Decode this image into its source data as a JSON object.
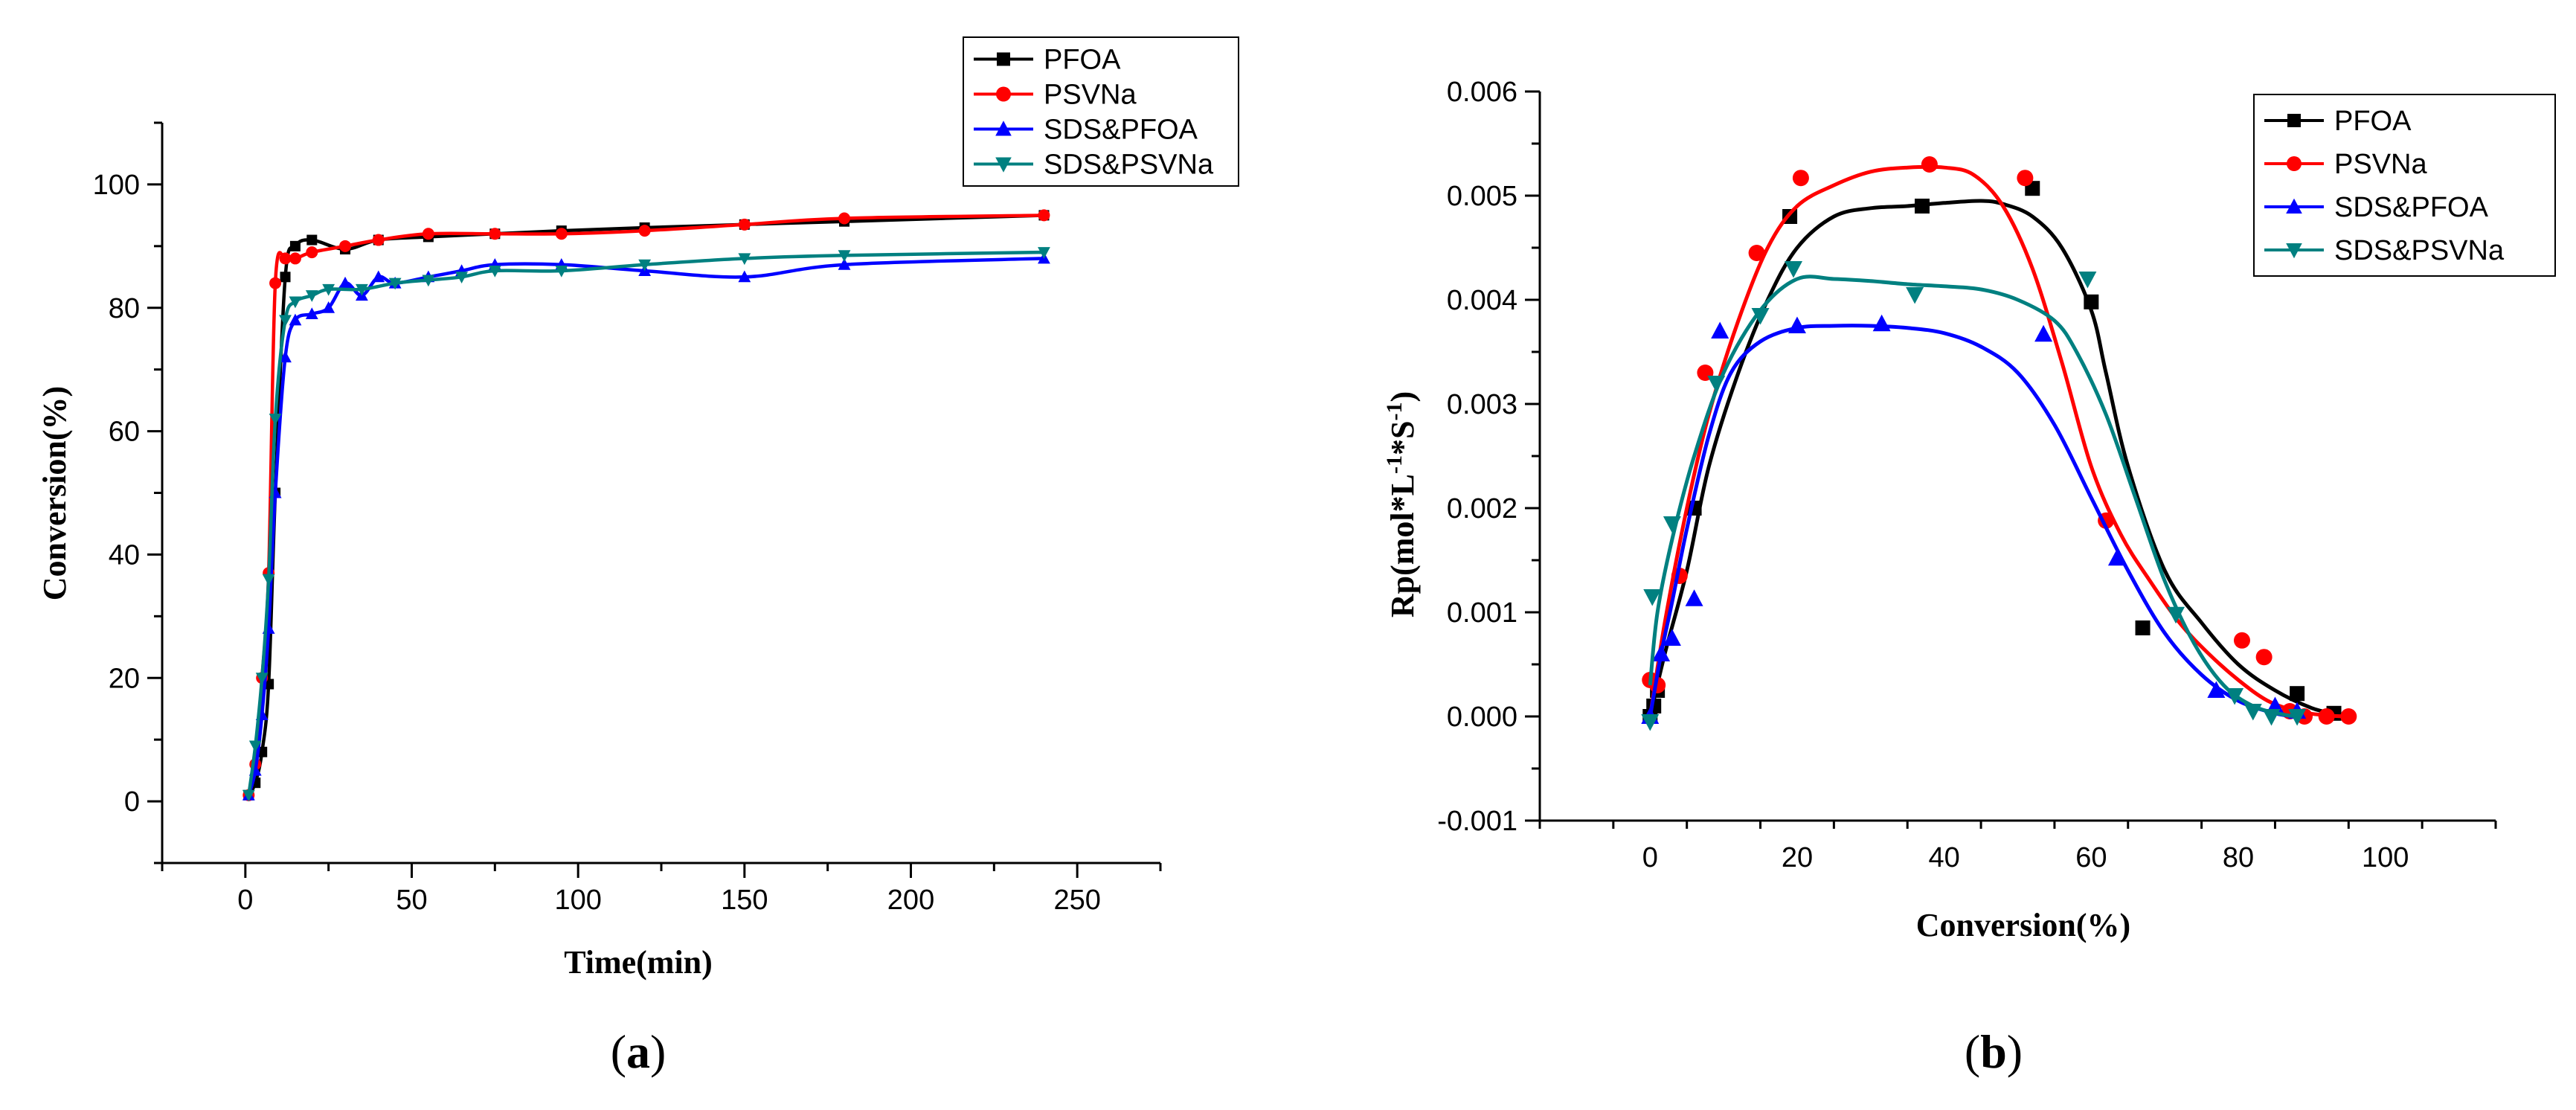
{
  "figure": {
    "captions": [
      "(a)",
      "(b)"
    ],
    "caption_letters": [
      "a",
      "b"
    ]
  },
  "chart_data": [
    {
      "type": "line",
      "title": "",
      "xlabel": "Time(min)",
      "ylabel": "Conversion(%)",
      "xlim": [
        -25,
        275
      ],
      "ylim": [
        -10,
        110
      ],
      "xticks": [
        0,
        50,
        100,
        150,
        200,
        250
      ],
      "yticks": [
        0,
        20,
        40,
        60,
        80,
        100
      ],
      "legend_position": "top-right",
      "series": [
        {
          "name": "PFOA",
          "color": "#000000",
          "marker": "square",
          "x": [
            1,
            3,
            5,
            7,
            9,
            12,
            15,
            20,
            30,
            40,
            55,
            75,
            95,
            120,
            150,
            180,
            240
          ],
          "y": [
            1,
            3,
            8,
            19,
            50,
            85,
            90,
            91,
            89.5,
            91,
            91.5,
            92,
            92.5,
            93,
            93.5,
            94,
            95
          ]
        },
        {
          "name": "PSVNa",
          "color": "#ff0000",
          "marker": "circle",
          "x": [
            1,
            3,
            5,
            7,
            9,
            12,
            15,
            20,
            30,
            40,
            55,
            75,
            95,
            120,
            150,
            180,
            240
          ],
          "y": [
            1,
            6,
            20,
            37,
            84,
            88,
            88,
            89,
            90,
            91,
            92,
            92,
            92,
            92.5,
            93.5,
            94.5,
            95
          ]
        },
        {
          "name": "SDS&PFOA",
          "color": "#0000ff",
          "marker": "triangle-up",
          "x": [
            1,
            3,
            5,
            7,
            9,
            12,
            15,
            20,
            25,
            30,
            35,
            40,
            45,
            55,
            65,
            75,
            95,
            120,
            150,
            180,
            240
          ],
          "y": [
            1,
            5,
            14,
            28,
            50,
            72,
            78,
            79,
            80,
            84,
            82,
            85,
            84,
            85,
            86,
            87,
            87,
            86,
            85,
            87,
            88
          ]
        },
        {
          "name": "SDS&PSVNa",
          "color": "#008080",
          "marker": "triangle-down",
          "x": [
            1,
            3,
            5,
            7,
            9,
            12,
            15,
            20,
            25,
            35,
            45,
            55,
            65,
            75,
            95,
            120,
            150,
            180,
            240
          ],
          "y": [
            1,
            9,
            20,
            36,
            62,
            78,
            81,
            82,
            83,
            83,
            84,
            84.5,
            85,
            86,
            86,
            87,
            88,
            88.5,
            89
          ]
        }
      ]
    },
    {
      "type": "line",
      "title": "",
      "xlabel": "Conversion(%)",
      "ylabel_main": "Rp(mol*L",
      "ylabel_sup1": "-1",
      "ylabel_mid": "*S",
      "ylabel_sup2": "-1",
      "ylabel_end": ")",
      "xlim": [
        -15,
        115
      ],
      "ylim": [
        -0.001,
        0.006
      ],
      "xticks": [
        0,
        20,
        40,
        60,
        80,
        100
      ],
      "yticks": [
        -0.001,
        0.0,
        0.001,
        0.002,
        0.003,
        0.004,
        0.005,
        0.006
      ],
      "ytick_labels": [
        "-0.001",
        "0.000",
        "0.001",
        "0.002",
        "0.003",
        "0.004",
        "0.005",
        "0.006"
      ],
      "legend_position": "top-right",
      "series": [
        {
          "name": "PFOA",
          "color": "#000000",
          "marker": "square",
          "points_x": [
            0,
            0.5,
            1,
            6,
            19,
            37,
            52,
            60,
            67,
            88,
            93
          ],
          "points_y": [
            0.0,
            0.0001,
            0.00025,
            0.002,
            0.0048,
            0.0049,
            0.00507,
            0.00398,
            0.00085,
            0.00022,
            3e-05
          ],
          "curve_x": [
            0,
            2,
            5,
            8,
            12,
            16,
            20,
            25,
            30,
            35,
            40,
            45,
            48,
            52,
            56,
            60,
            62,
            65,
            70,
            75,
            80,
            85,
            90,
            93
          ],
          "curve_y": [
            0.0,
            0.0006,
            0.0014,
            0.0024,
            0.0033,
            0.004,
            0.0045,
            0.0048,
            0.00488,
            0.0049,
            0.00493,
            0.00495,
            0.00492,
            0.0048,
            0.0045,
            0.0039,
            0.0033,
            0.0024,
            0.0014,
            0.0009,
            0.0005,
            0.00025,
            8e-05,
            3e-05
          ]
        },
        {
          "name": "PSVNa",
          "color": "#ff0000",
          "marker": "circle",
          "points_x": [
            0,
            1,
            4,
            7.5,
            14.5,
            20.5,
            38,
            51,
            62,
            80.5,
            83.5,
            87,
            89,
            92,
            95
          ],
          "points_y": [
            0.00035,
            0.0003,
            0.00135,
            0.0033,
            0.00445,
            0.00517,
            0.0053,
            0.00517,
            0.00188,
            0.00073,
            0.00057,
            5e-05,
            0.0,
            0.0,
            0.0
          ],
          "curve_x": [
            0,
            2,
            5,
            8,
            12,
            16,
            20,
            25,
            30,
            35,
            40,
            44,
            48,
            52,
            56,
            60,
            64,
            68,
            72,
            76,
            80,
            84,
            88,
            92,
            95
          ],
          "curve_y": [
            0.0,
            0.0009,
            0.002,
            0.0029,
            0.0038,
            0.0045,
            0.0049,
            0.0051,
            0.00523,
            0.00527,
            0.00527,
            0.0052,
            0.0049,
            0.0043,
            0.0034,
            0.0024,
            0.00175,
            0.0013,
            0.0009,
            0.0006,
            0.00035,
            0.00015,
            5e-05,
            1e-05,
            0.0
          ]
        },
        {
          "name": "SDS&PFOA",
          "color": "#0000ff",
          "marker": "triangle-up",
          "points_x": [
            0,
            1.5,
            3,
            6,
            9.5,
            20,
            31.5,
            53.5,
            63.5,
            77,
            85,
            88
          ],
          "points_y": [
            0.0,
            0.0006,
            0.00075,
            0.00113,
            0.0037,
            0.00375,
            0.00377,
            0.00367,
            0.00152,
            0.00025,
            0.0001,
            5e-05
          ],
          "curve_x": [
            0,
            1.5,
            3,
            5,
            8,
            11,
            15,
            20,
            25,
            30,
            35,
            40,
            45,
            50,
            55,
            60,
            65,
            70,
            75,
            80,
            85,
            88
          ],
          "curve_y": [
            0.0,
            0.0006,
            0.0011,
            0.0018,
            0.0027,
            0.0033,
            0.0036,
            0.00373,
            0.00375,
            0.00375,
            0.00373,
            0.00368,
            0.00355,
            0.0033,
            0.0028,
            0.0021,
            0.0014,
            0.0008,
            0.0004,
            0.00015,
            3e-05,
            0.0
          ]
        },
        {
          "name": "SDS&PSVNa",
          "color": "#008080",
          "marker": "triangle-down",
          "points_x": [
            0,
            0.3,
            3,
            9,
            15,
            19.5,
            36,
            59.5,
            71.5,
            79.5,
            82,
            84.5,
            88
          ],
          "points_y": [
            -5e-05,
            0.00115,
            0.00185,
            0.0032,
            0.00385,
            0.0043,
            0.00405,
            0.0042,
            0.00098,
            0.0002,
            5e-05,
            0.0,
            0.0
          ],
          "curve_x": [
            0,
            1,
            3,
            6,
            10,
            15,
            20,
            25,
            30,
            35,
            40,
            45,
            50,
            55,
            58,
            62,
            66,
            70,
            74,
            78,
            82,
            86,
            88
          ],
          "curve_y": [
            0.0003,
            0.001,
            0.0017,
            0.0025,
            0.0033,
            0.0039,
            0.0042,
            0.0042,
            0.00418,
            0.00415,
            0.00413,
            0.0041,
            0.004,
            0.0038,
            0.0035,
            0.0029,
            0.0021,
            0.0013,
            0.0007,
            0.0003,
            0.0001,
            2e-05,
            0.0
          ]
        }
      ]
    }
  ]
}
